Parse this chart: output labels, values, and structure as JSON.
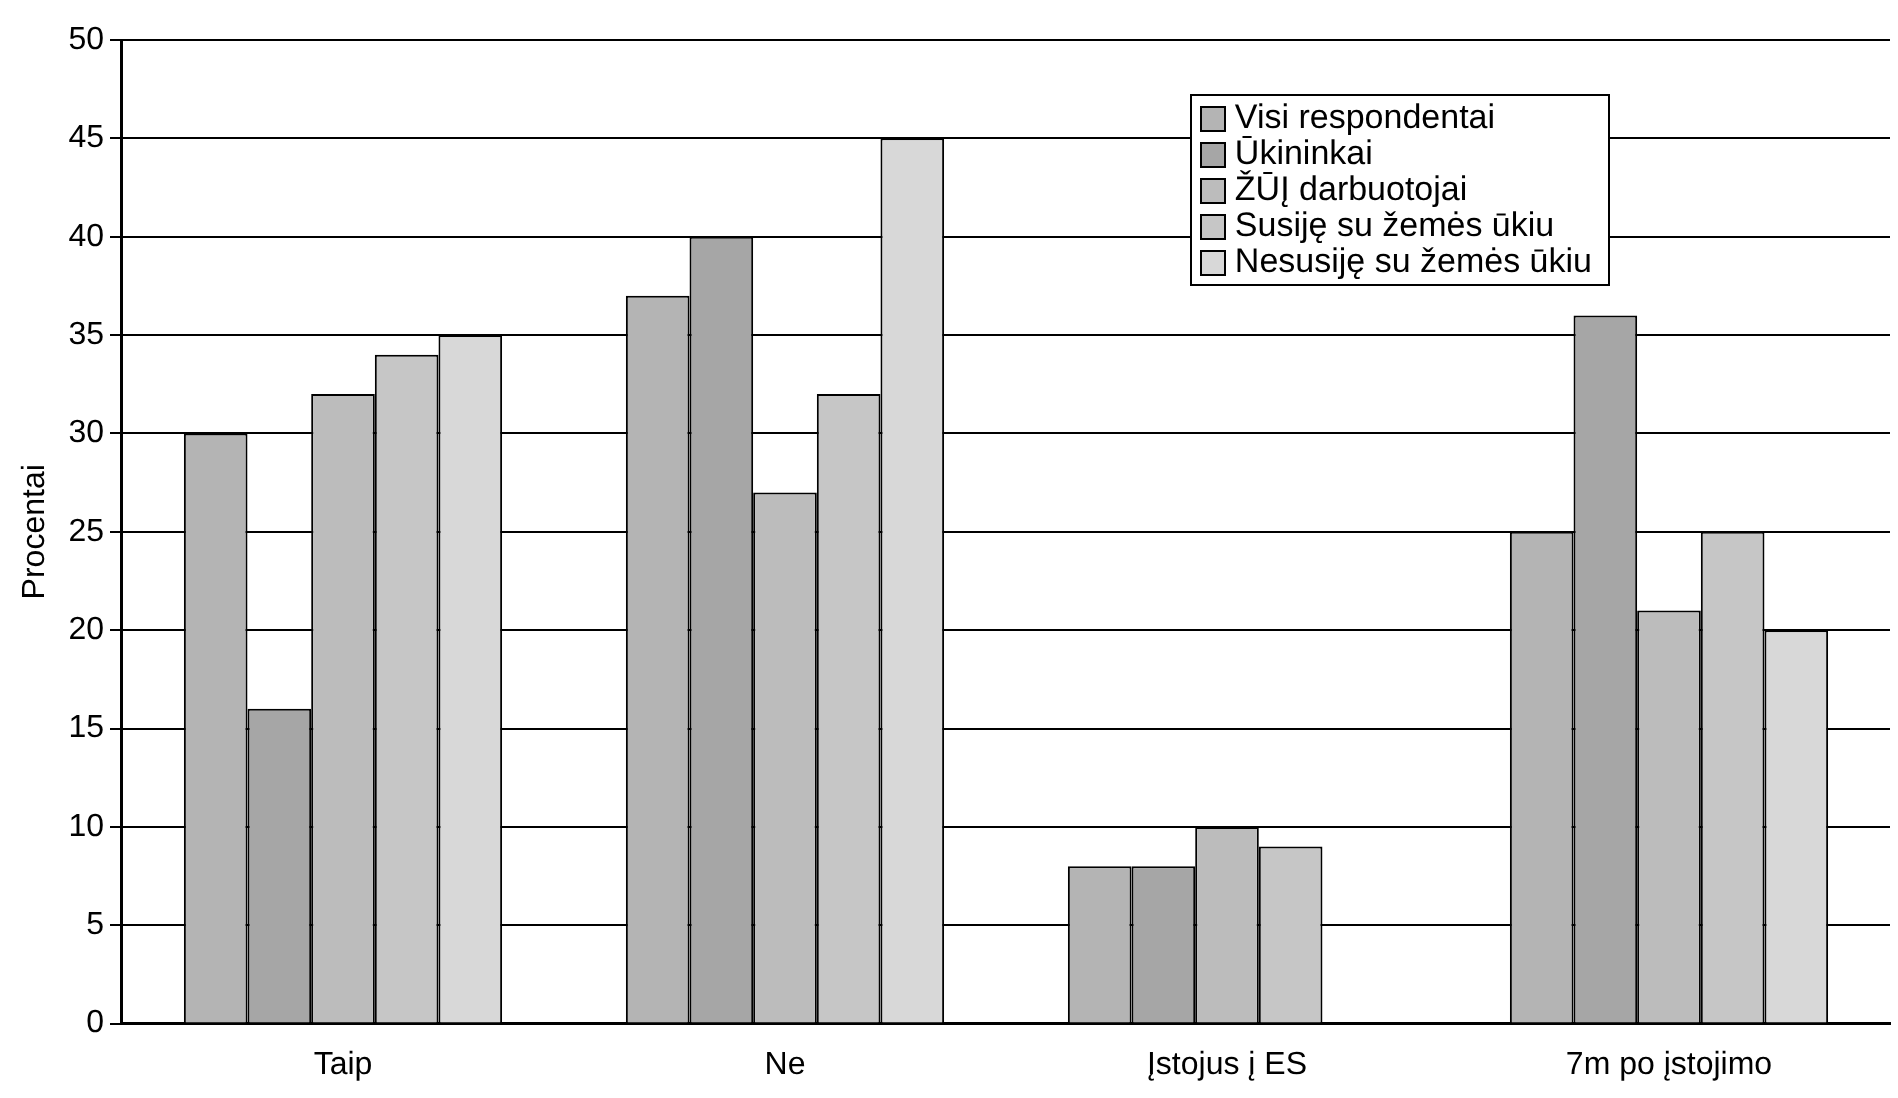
{
  "chart_data": {
    "type": "bar",
    "ylabel": "Procentai",
    "categories": [
      "Taip",
      "Ne",
      "Įstojus į ES",
      "7m po įstojimo"
    ],
    "series": [
      {
        "name": "Visi respondentai",
        "color": "#b4b4b4",
        "values": [
          30,
          37,
          8,
          25
        ]
      },
      {
        "name": "Ūkininkai",
        "color": "#a6a6a6",
        "values": [
          16,
          40,
          8,
          36
        ]
      },
      {
        "name": "ŽŪĮ darbuotojai",
        "color": "#bcbcbc",
        "values": [
          32,
          27,
          10,
          21
        ]
      },
      {
        "name": "Susiję su žemės ūkiu",
        "color": "#c6c6c6",
        "values": [
          34,
          32,
          9,
          25
        ]
      },
      {
        "name": "Nesusiję su žemės ūkiu",
        "color": "#d8d8d8",
        "values": [
          35,
          45,
          null,
          20
        ]
      }
    ],
    "ylim": [
      0,
      50
    ],
    "yticks": [
      0,
      5,
      10,
      15,
      20,
      25,
      30,
      35,
      40,
      45,
      50
    ],
    "grid": "y",
    "legend": "top right"
  }
}
